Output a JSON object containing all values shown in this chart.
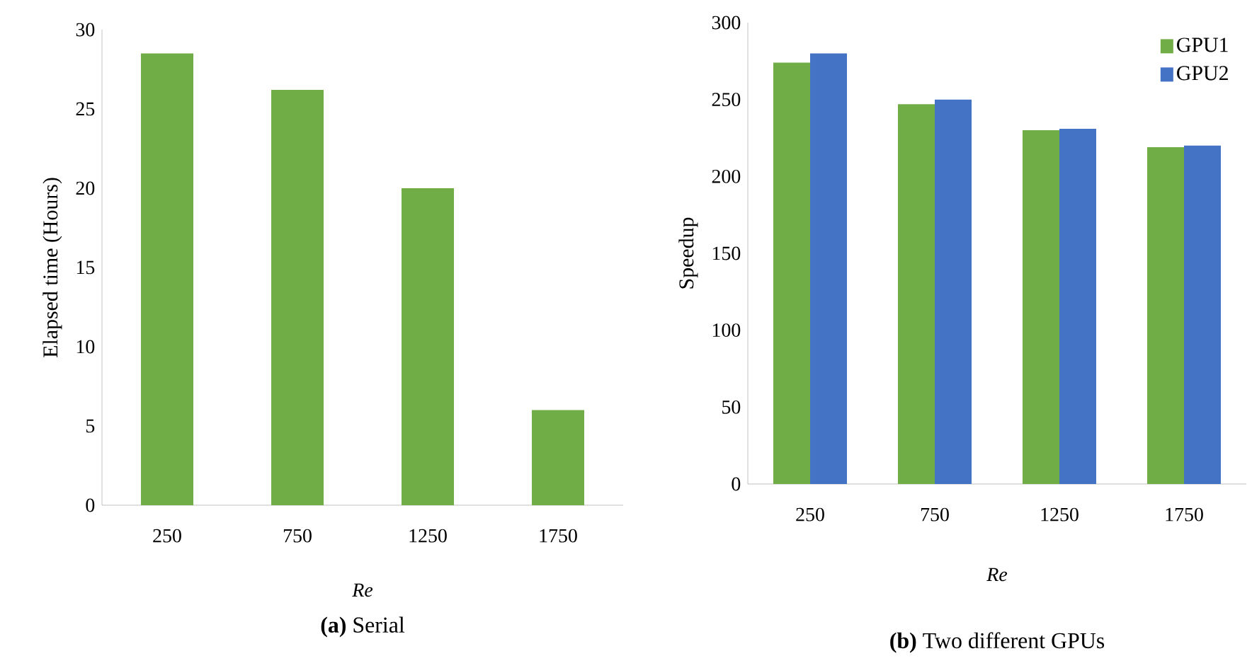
{
  "chart_data": [
    {
      "type": "bar",
      "title": "**(a)** Serial",
      "xlabel": "Re",
      "ylabel": "Elapsed time (Hours)",
      "categories": [
        "250",
        "750",
        "1250",
        "1750"
      ],
      "values": [
        28.5,
        26.2,
        20,
        6
      ],
      "color": "#70ad47",
      "ylim": [
        0,
        30
      ],
      "yticks": [
        0,
        5,
        10,
        15,
        20,
        25,
        30
      ]
    },
    {
      "type": "bar",
      "title": "**(b)** Two different GPUs",
      "xlabel": "Re",
      "ylabel": "Speedup",
      "categories": [
        "250",
        "750",
        "1250",
        "1750"
      ],
      "series": [
        {
          "name": "GPU1",
          "color": "#70ad47",
          "values": [
            274,
            247,
            230,
            219
          ]
        },
        {
          "name": "GPU2",
          "color": "#4472c4",
          "values": [
            280,
            250,
            231,
            220
          ]
        }
      ],
      "ylim": [
        0,
        300
      ],
      "yticks": [
        0,
        50,
        100,
        150,
        200,
        250,
        300
      ],
      "legend": "top right"
    }
  ]
}
